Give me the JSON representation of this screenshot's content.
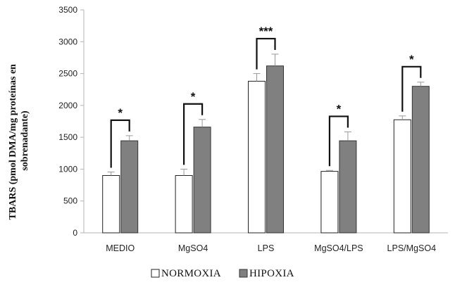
{
  "chart_data": {
    "type": "bar",
    "ylabel_lines": [
      "TBARS (pmol DMA/mg proteínas en",
      "sobrenadante)"
    ],
    "categories": [
      "MEDIO",
      "MgSO4",
      "LPS",
      "MgSO4/LPS",
      "LPS/MgSO4"
    ],
    "ylim": [
      0,
      3500
    ],
    "yticks": [
      "0",
      "500",
      "1000",
      "1500",
      "2000",
      "2500",
      "3000",
      "3500"
    ],
    "grid": false,
    "legend_position": "bottom",
    "series": [
      {
        "name": "NORMOXIA",
        "color": "#ffffff",
        "values": [
          900,
          900,
          2380,
          965,
          1775
        ],
        "errors": [
          55,
          100,
          120,
          15,
          60
        ]
      },
      {
        "name": "HIPOXIA",
        "color": "#808080",
        "values": [
          1445,
          1660,
          2620,
          1445,
          2300
        ],
        "errors": [
          80,
          120,
          185,
          140,
          65
        ]
      }
    ],
    "significance": [
      "*",
      "*",
      "***",
      "*",
      "*"
    ]
  }
}
